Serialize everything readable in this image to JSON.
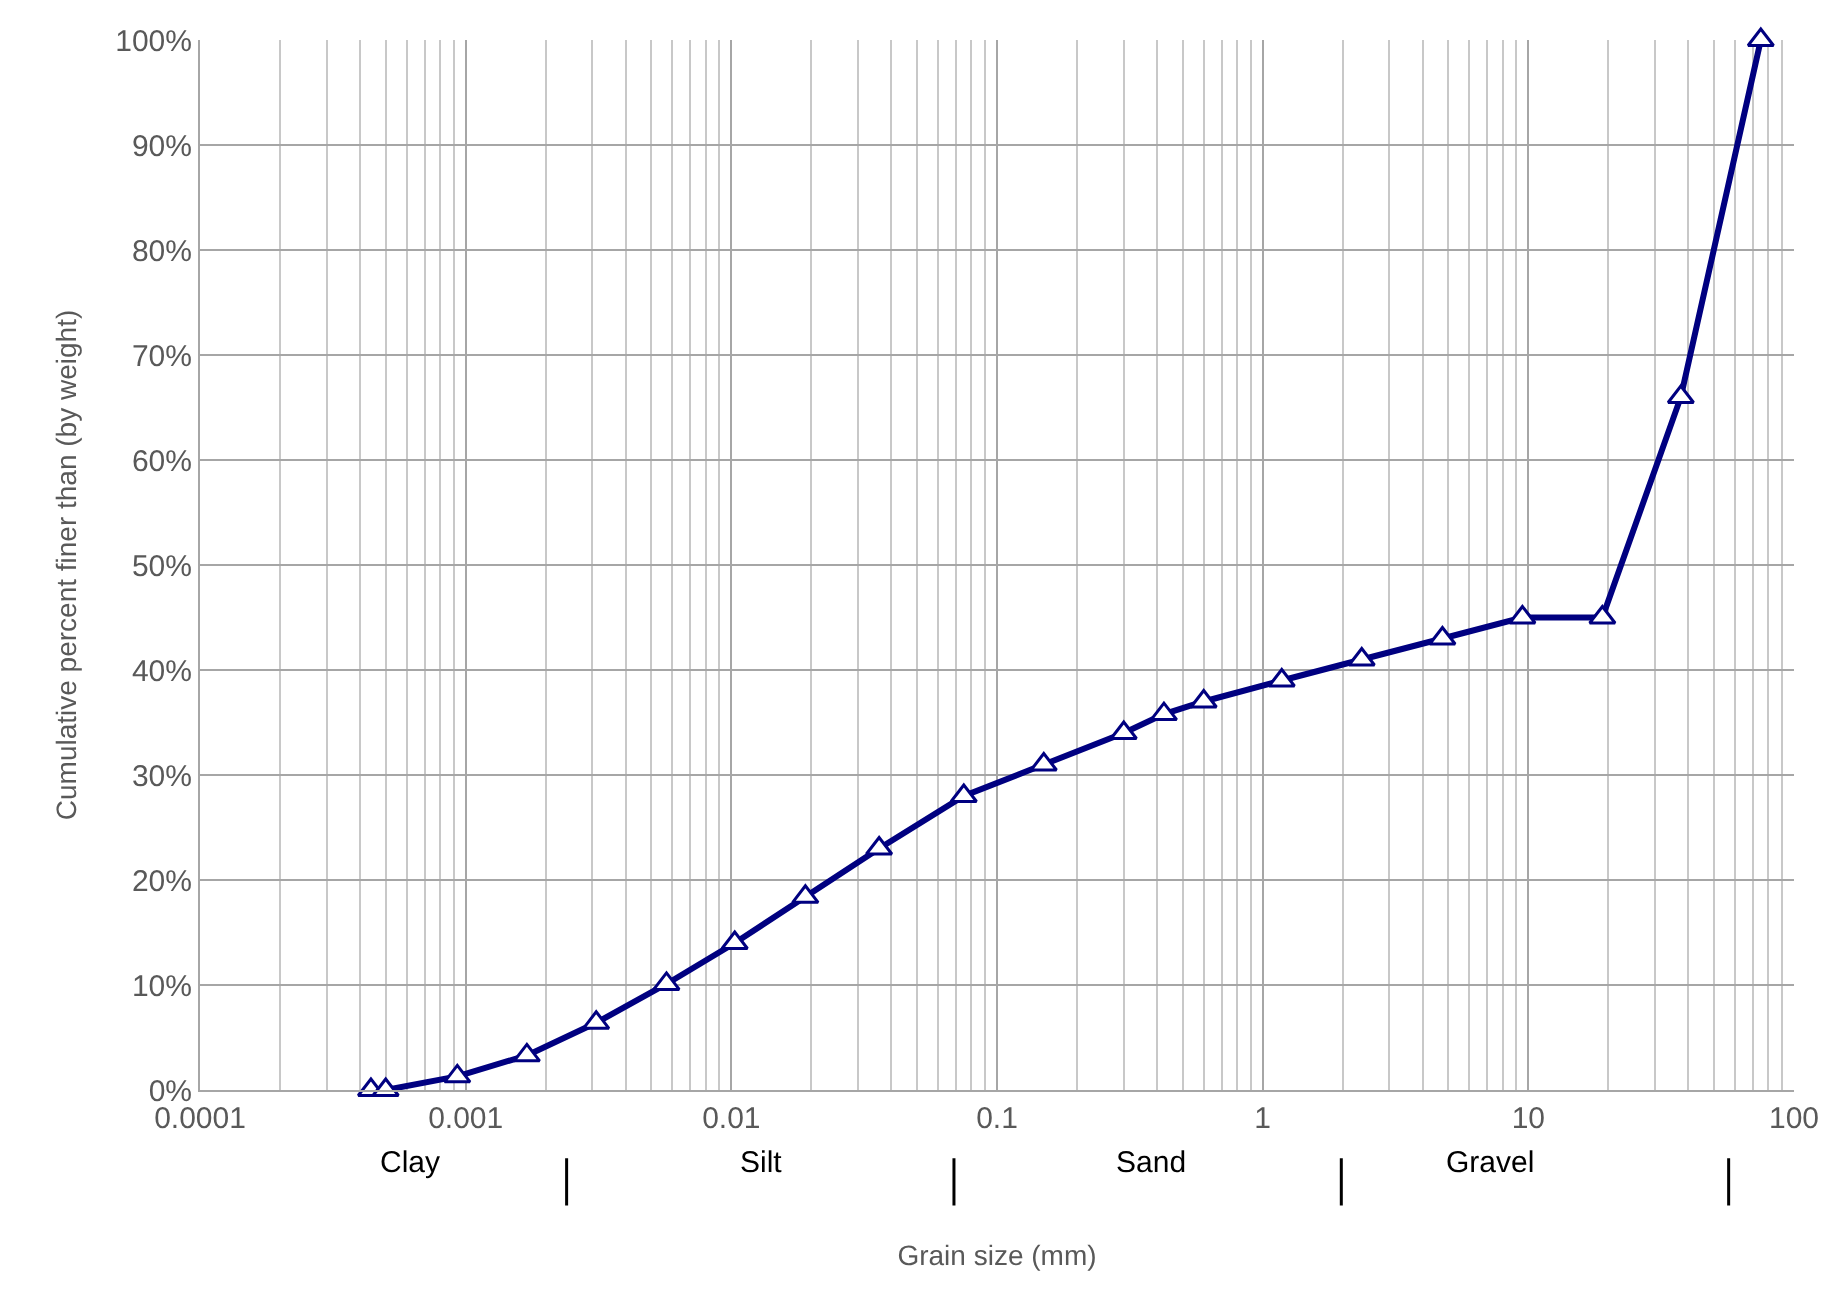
{
  "chart_data": {
    "type": "line",
    "xlabel": "Grain size (mm)",
    "ylabel": "Cumulative percent finer than (by weight)",
    "log": "x",
    "grid": true,
    "marker": "triangle",
    "line_style": "solid",
    "xlim": [
      0.0001,
      100
    ],
    "xticks": [
      0.0001,
      0.001,
      0.01,
      0.1,
      1,
      10,
      100
    ],
    "ylim": [
      0,
      100
    ],
    "yticks": [
      {
        "value": 0,
        "label": "0%"
      },
      {
        "value": 10,
        "label": "10%"
      },
      {
        "value": 20,
        "label": "20%"
      },
      {
        "value": 30,
        "label": "30%"
      },
      {
        "value": 40,
        "label": "40%"
      },
      {
        "value": 50,
        "label": "50%"
      },
      {
        "value": 60,
        "label": "60%"
      },
      {
        "value": 70,
        "label": "70%"
      },
      {
        "value": 80,
        "label": "80%"
      },
      {
        "value": 90,
        "label": "90%"
      },
      {
        "value": 100,
        "label": "100%"
      }
    ],
    "annotations": [
      "Clay",
      "Silt",
      "Sand",
      "Gravel"
    ],
    "series": [
      {
        "color": "#000080",
        "x": [
          0.00044,
          0.0005,
          0.00093,
          0.0017,
          0.0031,
          0.0057,
          0.0103,
          0.019,
          0.036,
          0.075,
          0.15,
          0.3,
          0.425,
          0.6,
          1.18,
          2.36,
          4.75,
          9.5,
          19,
          37.5,
          75
        ],
        "values": [
          0,
          0,
          1.3,
          3.3,
          6.4,
          10.1,
          14,
          18.4,
          23,
          28,
          31,
          34,
          35.8,
          37,
          39,
          41,
          43,
          45,
          45,
          66,
          100
        ]
      }
    ]
  }
}
